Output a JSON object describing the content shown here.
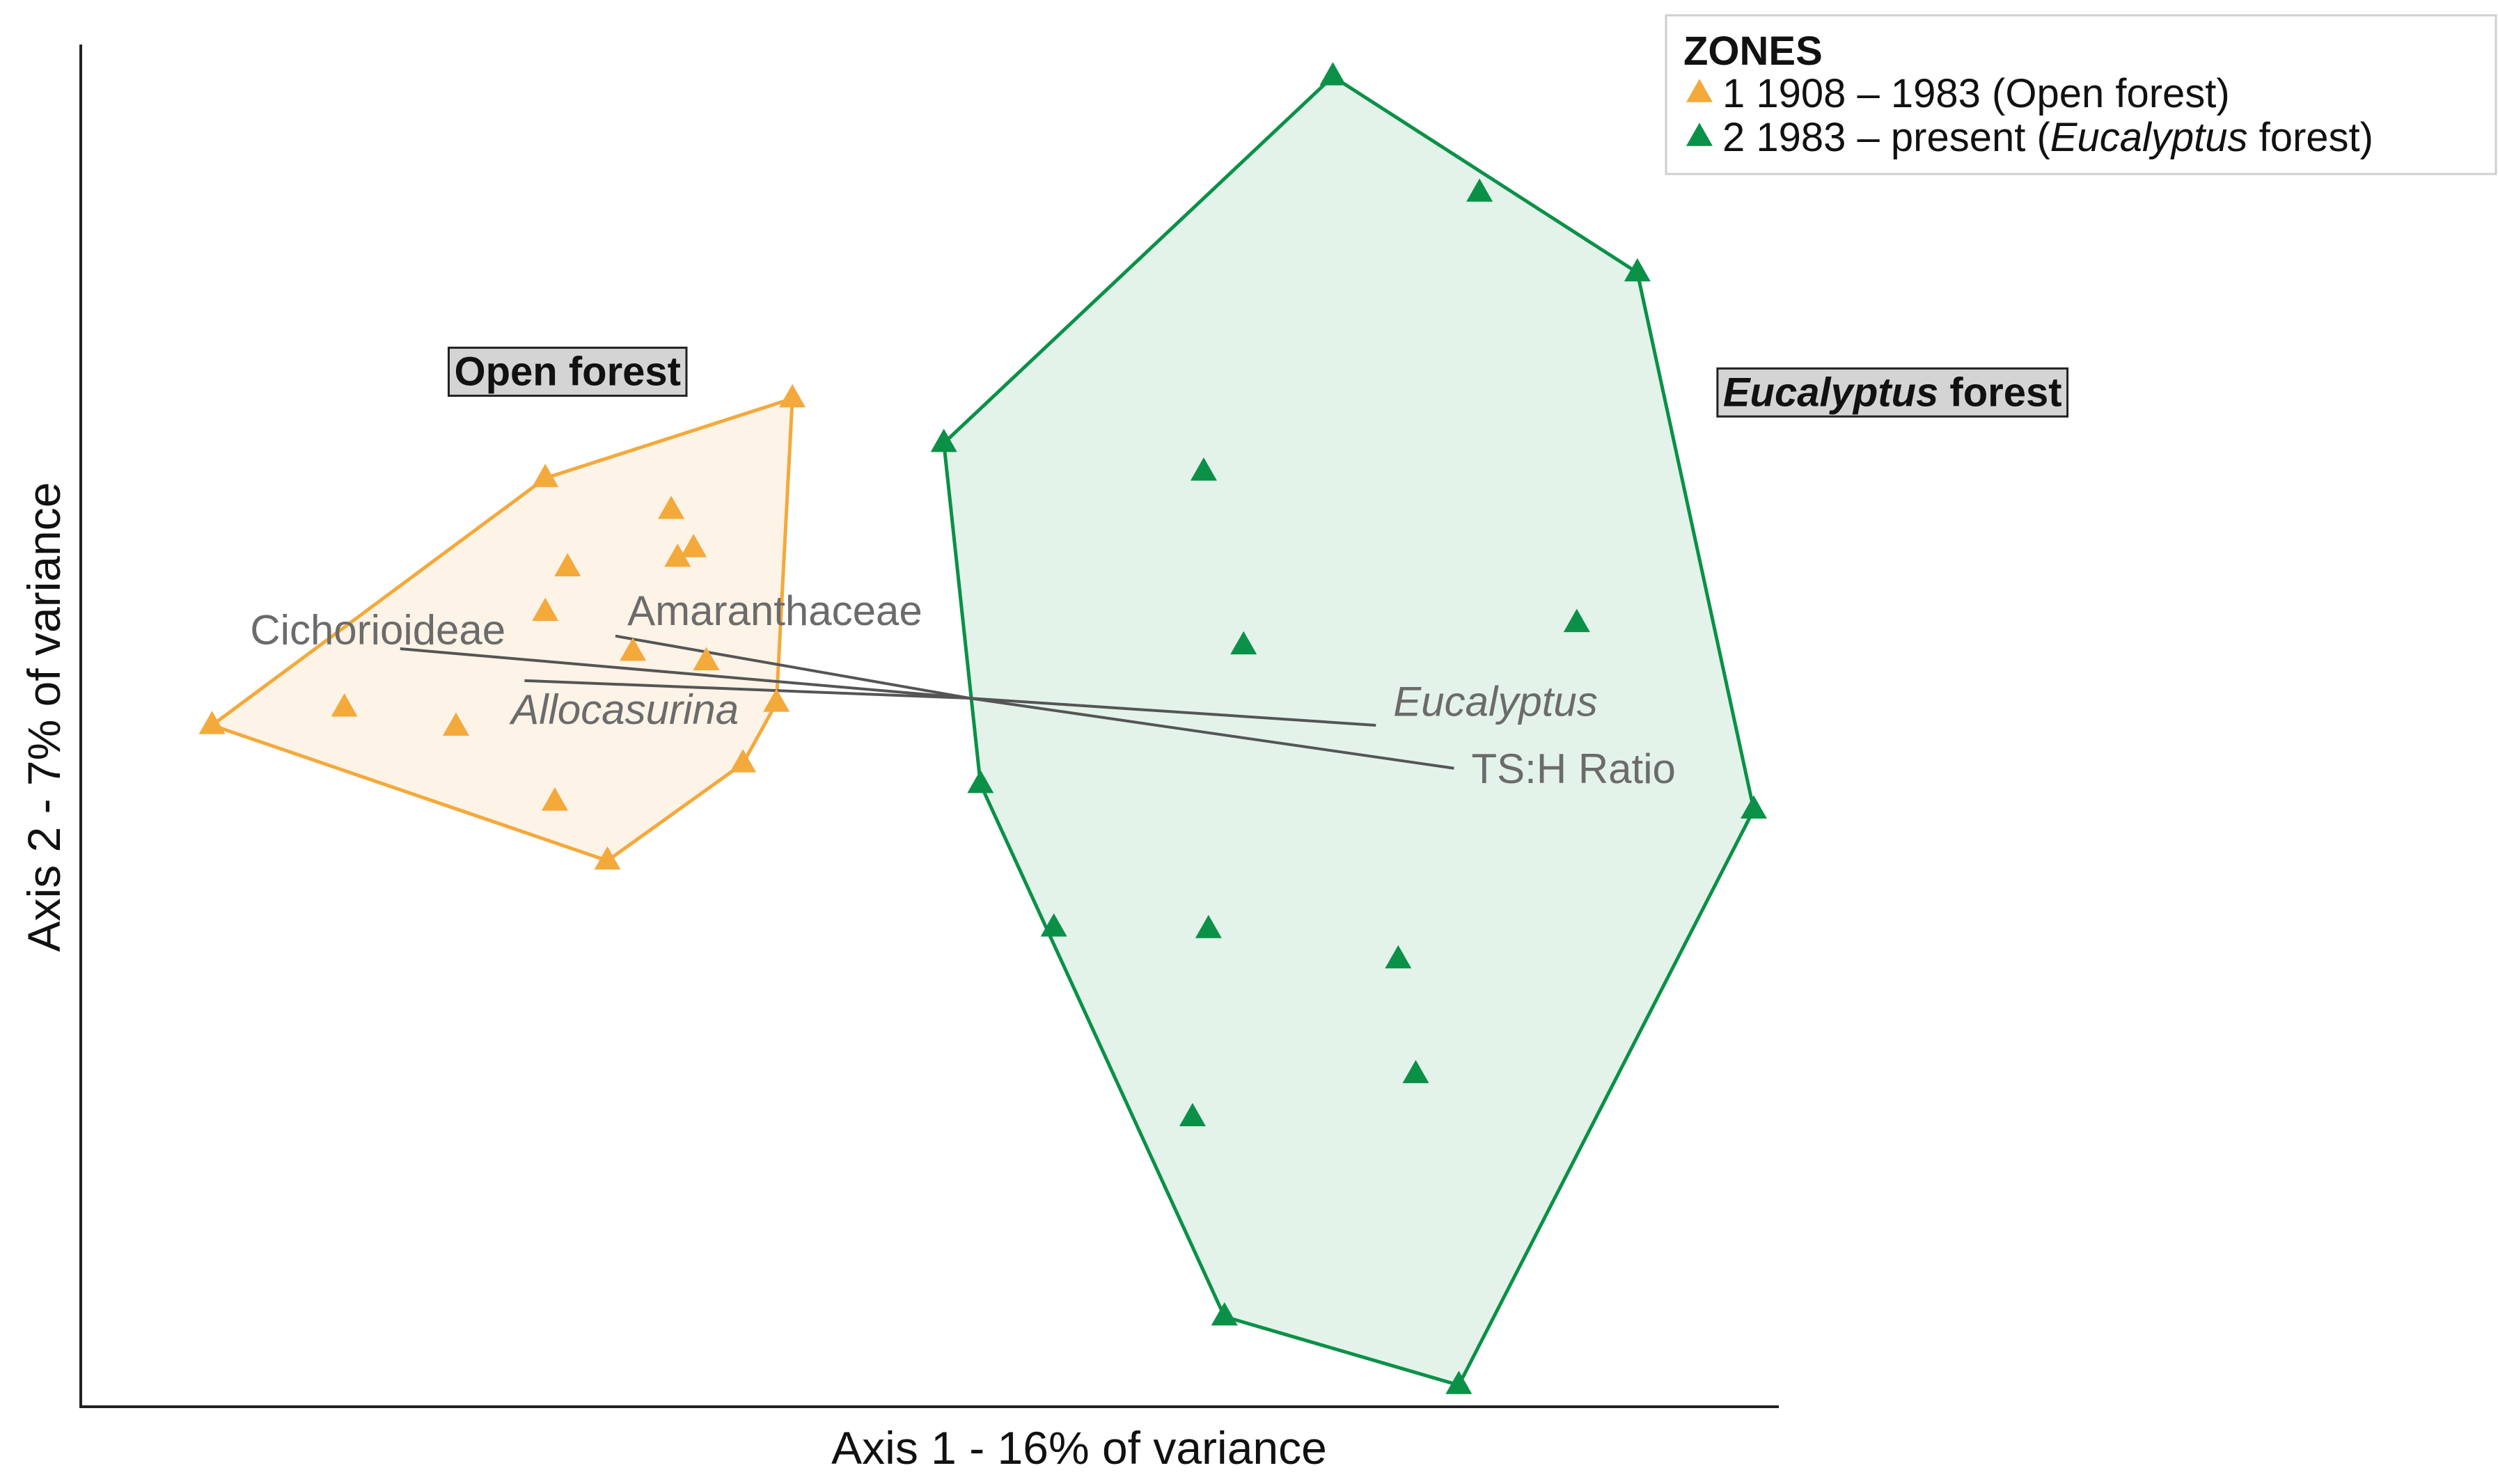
{
  "chart_data": {
    "type": "scatter",
    "title": "",
    "xlabel": "Axis 1 - 16% of variance",
    "ylabel": "Axis 2  - 7% of variance",
    "xlim": [
      0,
      1117
    ],
    "ylim": [
      -884,
      -30
    ],
    "grid": false,
    "legend": {
      "title": "ZONES",
      "placement": "top-right",
      "entries": [
        {
          "series": "zone1",
          "parts": [
            {
              "t": "1 1908 – 1983 (Open forest)",
              "i": false
            }
          ]
        },
        {
          "series": "zone2",
          "parts": [
            {
              "t": "2 1983 – present (",
              "i": false
            },
            {
              "t": "Eucalyptus",
              "i": true
            },
            {
              "t": " forest)",
              "i": false
            }
          ]
        }
      ]
    },
    "series": [
      {
        "id": "zone1",
        "color": "#F4A93B",
        "fill": "#FDF3E6",
        "points": [
          [
            133,
            -455
          ],
          [
            342,
            -300
          ],
          [
            497,
            -250
          ],
          [
            421,
            -320
          ],
          [
            435,
            -344
          ],
          [
            425,
            -350
          ],
          [
            356,
            -356
          ],
          [
            342,
            -384
          ],
          [
            397,
            -409
          ],
          [
            443,
            -415
          ],
          [
            487,
            -441
          ],
          [
            216,
            -444
          ],
          [
            286,
            -456
          ],
          [
            466,
            -479
          ],
          [
            348,
            -503
          ],
          [
            381,
            -540
          ]
        ],
        "hull": [
          [
            133,
            -455
          ],
          [
            342,
            -300
          ],
          [
            497,
            -250
          ],
          [
            487,
            -441
          ],
          [
            466,
            -479
          ],
          [
            381,
            -540
          ]
        ]
      },
      {
        "id": "zone2",
        "color": "#0A9147",
        "fill": "#E3F3EA",
        "points": [
          [
            836,
            -48
          ],
          [
            928,
            -121
          ],
          [
            1027,
            -171
          ],
          [
            592,
            -278
          ],
          [
            755,
            -296
          ],
          [
            989,
            -391
          ],
          [
            780,
            -405
          ],
          [
            615,
            -492
          ],
          [
            1100,
            -508
          ],
          [
            661,
            -582
          ],
          [
            758,
            -583
          ],
          [
            877,
            -602
          ],
          [
            888,
            -674
          ],
          [
            748,
            -701
          ],
          [
            768,
            -826
          ],
          [
            915,
            -869
          ]
        ],
        "hull": [
          [
            836,
            -48
          ],
          [
            1027,
            -171
          ],
          [
            1100,
            -508
          ],
          [
            915,
            -869
          ],
          [
            768,
            -826
          ],
          [
            615,
            -492
          ],
          [
            592,
            -278
          ]
        ]
      }
    ],
    "vectors": [
      {
        "parts": [
          {
            "t": "Cichorioideae",
            "i": false
          }
        ],
        "from": [
          251,
          -407
        ],
        "to": [
          608,
          -438
        ],
        "label_at": [
          237,
          -395
        ]
      },
      {
        "parts": [
          {
            "t": "Amaranthaceae",
            "i": false
          }
        ],
        "from": [
          386,
          -399
        ],
        "to": [
          608,
          -438
        ],
        "label_at": [
          486,
          -383
        ]
      },
      {
        "parts": [
          {
            "t": "Allocasurina",
            "i": true
          }
        ],
        "from": [
          329,
          -427
        ],
        "to": [
          608,
          -438
        ],
        "label_at": [
          392,
          -445
        ]
      },
      {
        "parts": [
          {
            "t": "Eucalyptus",
            "i": true
          }
        ],
        "from": [
          863,
          -455
        ],
        "to": [
          608,
          -438
        ],
        "label_at": [
          938,
          -440
        ]
      },
      {
        "parts": [
          {
            "t": "TS:H Ratio",
            "i": false
          }
        ],
        "from": [
          912,
          -482
        ],
        "to": [
          608,
          -438
        ],
        "label_at": [
          987,
          -482
        ]
      }
    ],
    "zone_labels": [
      {
        "parts": [
          {
            "t": "Open forest",
            "i": false
          }
        ],
        "at": [
          356,
          -233
        ]
      },
      {
        "parts": [
          {
            "t": "Eucalyptus",
            "i": true
          },
          {
            "t": " forest",
            "i": false
          }
        ],
        "at": [
          1187,
          -246
        ]
      }
    ]
  }
}
